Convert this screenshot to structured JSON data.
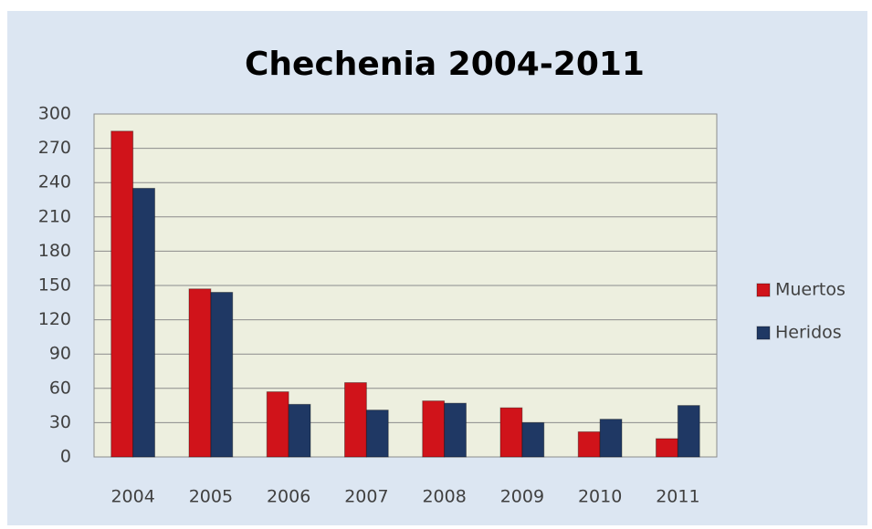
{
  "chart_data": {
    "type": "bar",
    "title": "Chechenia 2004-2011",
    "categories": [
      "2004",
      "2005",
      "2006",
      "2007",
      "2008",
      "2009",
      "2010",
      "2011"
    ],
    "series": [
      {
        "name": "Muertos",
        "color": "#d0131a",
        "values": [
          285,
          147,
          57,
          65,
          49,
          43,
          22,
          16
        ]
      },
      {
        "name": "Heridos",
        "color": "#1f3864",
        "values": [
          235,
          144,
          46,
          41,
          47,
          30,
          33,
          45
        ]
      }
    ],
    "ylim": [
      0,
      300
    ],
    "yticks": [
      0,
      30,
      60,
      90,
      120,
      150,
      180,
      210,
      240,
      270,
      300
    ],
    "grid": true,
    "legend": "right"
  }
}
